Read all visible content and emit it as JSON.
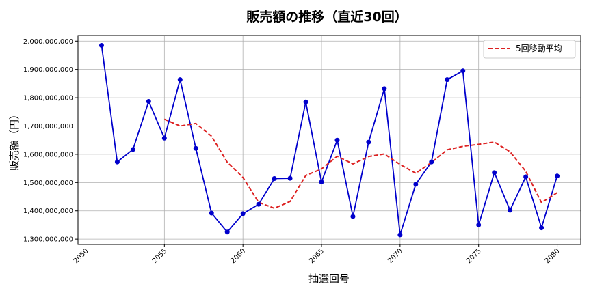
{
  "chart_data": {
    "type": "line",
    "title": "販売額の推移（直近30回）",
    "xlabel": "抽選回号",
    "ylabel": "販売額（円）",
    "x": [
      2051,
      2052,
      2053,
      2054,
      2055,
      2056,
      2057,
      2058,
      2059,
      2060,
      2061,
      2062,
      2063,
      2064,
      2065,
      2066,
      2067,
      2068,
      2069,
      2070,
      2071,
      2072,
      2073,
      2074,
      2075,
      2076,
      2077,
      2078,
      2079,
      2080
    ],
    "series": [
      {
        "name": "",
        "color": "#0000cc",
        "style": "solid-markers",
        "values": [
          1985000000,
          1573000000,
          1617000000,
          1787000000,
          1657000000,
          1864000000,
          1621000000,
          1392000000,
          1325000000,
          1390000000,
          1423000000,
          1514000000,
          1515000000,
          1785000000,
          1502000000,
          1650000000,
          1380000000,
          1643000000,
          1832000000,
          1315000000,
          1494000000,
          1573000000,
          1864000000,
          1895000000,
          1350000000,
          1535000000,
          1402000000,
          1520000000,
          1340000000,
          1523000000
        ]
      },
      {
        "name": "5回移動平均",
        "color": "#dd2222",
        "style": "dashed",
        "values": [
          null,
          null,
          null,
          null,
          1724000000,
          1700000000,
          1709000000,
          1664000000,
          1572000000,
          1518000000,
          1430000000,
          1409000000,
          1433000000,
          1525000000,
          1548000000,
          1593000000,
          1566000000,
          1592000000,
          1601000000,
          1564000000,
          1533000000,
          1571000000,
          1616000000,
          1628000000,
          1635000000,
          1643000000,
          1609000000,
          1540000000,
          1429000000,
          1464000000
        ]
      }
    ],
    "xticks": [
      2050,
      2055,
      2060,
      2065,
      2070,
      2075,
      2080
    ],
    "yticks": [
      1300000000,
      1400000000,
      1500000000,
      1600000000,
      1700000000,
      1800000000,
      1900000000,
      2000000000
    ],
    "xlim": [
      2049.5,
      2081.5
    ],
    "ylim": [
      1281000000,
      2020000000
    ],
    "grid": true,
    "legend_position": "top-right"
  }
}
